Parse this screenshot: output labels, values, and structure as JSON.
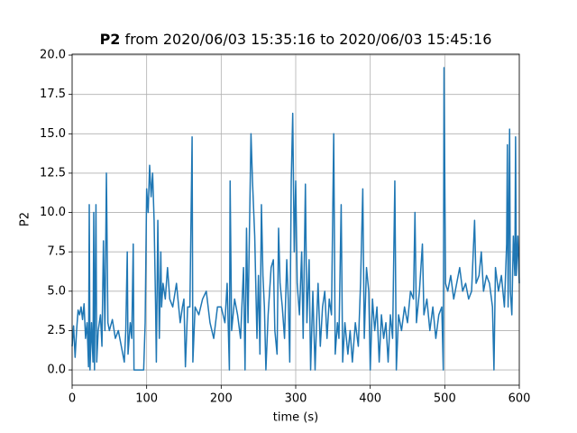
{
  "chart_data": {
    "type": "line",
    "title_parts": [
      "P2",
      "from 2020/06/03 15:35:16 to 2020/06/03 15:45:16"
    ],
    "xlabel": "time (s)",
    "ylabel": "P2",
    "color": "#1f77b4",
    "grid": true,
    "xlim": [
      0,
      600
    ],
    "ylim": [
      -0.97,
      20.06
    ],
    "xticks": [
      0,
      100,
      200,
      300,
      400,
      500,
      600
    ],
    "yticks": [
      {
        "value": 0,
        "label": "0.0"
      },
      {
        "value": 2.5,
        "label": "2.5"
      },
      {
        "value": 5,
        "label": "5.0"
      },
      {
        "value": 7.5,
        "label": "7.5"
      },
      {
        "value": 10,
        "label": "10.0"
      },
      {
        "value": 12.5,
        "label": "12.5"
      },
      {
        "value": 15,
        "label": "15.0"
      },
      {
        "value": 17.5,
        "label": "17.5"
      },
      {
        "value": 20,
        "label": "20.0"
      }
    ],
    "x": [
      0,
      2,
      4,
      6,
      8,
      10,
      12,
      14,
      16,
      18,
      20,
      22,
      23,
      24,
      26,
      28,
      29,
      30,
      32,
      33,
      35,
      38,
      40,
      42,
      44,
      46,
      48,
      50,
      54,
      58,
      62,
      66,
      70,
      72,
      74,
      75,
      78,
      80,
      82,
      83,
      86,
      90,
      96,
      98,
      100,
      102,
      104,
      106,
      108,
      110,
      112,
      113,
      115,
      117,
      119,
      120,
      122,
      125,
      128,
      131,
      135,
      140,
      145,
      148,
      150,
      152,
      155,
      158,
      161,
      162,
      165,
      170,
      175,
      180,
      185,
      190,
      195,
      200,
      205,
      208,
      211,
      212,
      214,
      218,
      222,
      226,
      230,
      232,
      234,
      236,
      240,
      242,
      245,
      248,
      250,
      252,
      254,
      256,
      258,
      260,
      263,
      267,
      270,
      272,
      275,
      277,
      279,
      282,
      285,
      288,
      290,
      292,
      294,
      296,
      298,
      300,
      302,
      305,
      308,
      310,
      313,
      315,
      318,
      320,
      323,
      326,
      328,
      330,
      333,
      336,
      339,
      342,
      345,
      348,
      351,
      353,
      356,
      358,
      361,
      363,
      366,
      370,
      373,
      376,
      380,
      384,
      387,
      390,
      392,
      395,
      398,
      400,
      403,
      406,
      409,
      412,
      415,
      418,
      421,
      424,
      427,
      430,
      433,
      435,
      438,
      442,
      446,
      450,
      454,
      458,
      460,
      462,
      466,
      470,
      472,
      476,
      480,
      484,
      488,
      492,
      496,
      498,
      499,
      501,
      504,
      508,
      512,
      516,
      520,
      524,
      528,
      532,
      536,
      540,
      542,
      546,
      549,
      552,
      556,
      560,
      564,
      566,
      568,
      572,
      576,
      580,
      583,
      584,
      585,
      587,
      588,
      590,
      592,
      594,
      595,
      596,
      598,
      600
    ],
    "values": [
      1.5,
      2.8,
      0.8,
      2.5,
      3.8,
      3.5,
      4.0,
      3.2,
      4.2,
      2.0,
      3.0,
      0.2,
      10.5,
      0.0,
      3.0,
      0.5,
      10.0,
      0.0,
      10.5,
      0.5,
      2.5,
      3.5,
      1.5,
      8.2,
      2.5,
      12.5,
      3.0,
      2.5,
      3.2,
      2.0,
      2.5,
      1.5,
      0.5,
      2.5,
      7.5,
      1.0,
      3.0,
      2.0,
      8.0,
      0.0,
      0.0,
      0.0,
      0.0,
      3.0,
      11.5,
      10.0,
      13.0,
      11.0,
      12.5,
      9.5,
      4.0,
      0.5,
      9.5,
      2.0,
      7.5,
      4.0,
      5.5,
      4.5,
      6.5,
      4.5,
      4.0,
      5.5,
      3.0,
      4.0,
      4.5,
      0.2,
      4.0,
      4.0,
      14.8,
      0.5,
      4.0,
      3.5,
      4.5,
      5.0,
      3.0,
      2.0,
      4.0,
      4.0,
      3.0,
      5.5,
      0.0,
      12.0,
      2.5,
      4.5,
      3.5,
      2.0,
      6.5,
      0.0,
      9.0,
      3.0,
      15.0,
      12.0,
      8.5,
      2.0,
      6.0,
      1.0,
      10.5,
      6.0,
      4.0,
      0.0,
      3.5,
      6.5,
      7.0,
      2.5,
      1.0,
      9.0,
      5.5,
      4.0,
      2.0,
      7.0,
      4.5,
      0.5,
      12.0,
      16.3,
      7.5,
      12.0,
      5.5,
      3.5,
      7.5,
      2.0,
      11.8,
      3.0,
      7.0,
      0.0,
      5.0,
      0.0,
      3.0,
      5.5,
      1.5,
      4.0,
      5.0,
      2.0,
      4.5,
      3.5,
      15.0,
      1.0,
      3.0,
      2.0,
      10.5,
      0.5,
      3.0,
      1.0,
      2.5,
      0.5,
      3.0,
      1.5,
      5.5,
      11.5,
      2.0,
      6.5,
      5.0,
      0.0,
      4.5,
      2.5,
      4.0,
      0.5,
      3.5,
      2.0,
      3.0,
      0.5,
      3.5,
      2.0,
      12.0,
      0.0,
      3.5,
      2.5,
      4.0,
      3.0,
      5.0,
      4.5,
      10.0,
      3.0,
      5.0,
      8.0,
      3.5,
      4.5,
      2.5,
      4.0,
      2.0,
      3.5,
      4.0,
      0.0,
      19.2,
      5.5,
      5.0,
      6.0,
      4.5,
      5.5,
      6.5,
      5.0,
      5.5,
      4.5,
      5.0,
      9.5,
      5.5,
      6.0,
      7.5,
      5.0,
      6.0,
      5.5,
      4.0,
      0.0,
      6.5,
      5.0,
      6.0,
      4.0,
      8.0,
      14.3,
      4.0,
      15.3,
      5.0,
      3.5,
      8.5,
      6.0,
      14.8,
      6.0,
      8.5,
      5.5
    ]
  }
}
